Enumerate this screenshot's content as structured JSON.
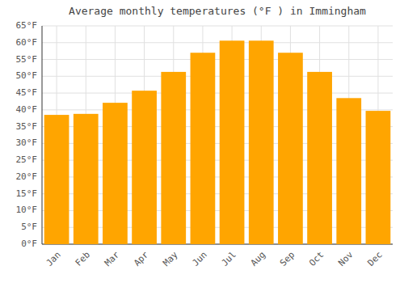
{
  "chart_data": {
    "type": "bar",
    "title": "Average monthly temperatures (°F ) in Immingham",
    "categories": [
      "Jan",
      "Feb",
      "Mar",
      "Apr",
      "May",
      "Jun",
      "Jul",
      "Aug",
      "Sep",
      "Oct",
      "Nov",
      "Dec"
    ],
    "values": [
      38.5,
      38.8,
      42.1,
      45.7,
      51.3,
      57.0,
      60.6,
      60.6,
      57.0,
      51.3,
      43.5,
      39.7
    ],
    "color": "#FFA500",
    "ylim": [
      0,
      65
    ],
    "yticks": [
      {
        "value": 0,
        "label": "0°F"
      },
      {
        "value": 5,
        "label": "5°F"
      },
      {
        "value": 10,
        "label": "10°F"
      },
      {
        "value": 15,
        "label": "15°F"
      },
      {
        "value": 20,
        "label": "20°F"
      },
      {
        "value": 25,
        "label": "25°F"
      },
      {
        "value": 30,
        "label": "30°F"
      },
      {
        "value": 35,
        "label": "35°F"
      },
      {
        "value": 40,
        "label": "40°F"
      },
      {
        "value": 45,
        "label": "45°F"
      },
      {
        "value": 50,
        "label": "50°F"
      },
      {
        "value": 55,
        "label": "55°F"
      },
      {
        "value": 60,
        "label": "60°F"
      },
      {
        "value": 65,
        "label": "65°F"
      }
    ],
    "grid": true
  }
}
